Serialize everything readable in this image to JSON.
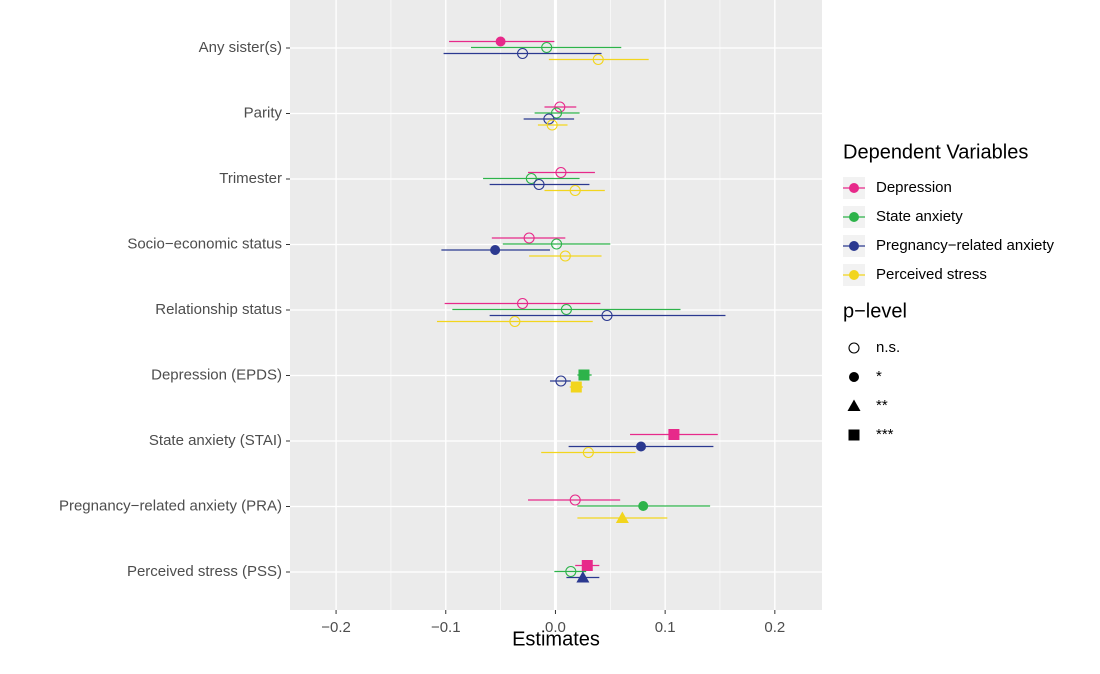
{
  "chart_data": {
    "type": "forest",
    "xlabel": "Estimates",
    "xlim": [
      -0.242,
      0.243
    ],
    "x_ticks": [
      -0.2,
      -0.1,
      0.0,
      0.1,
      0.2
    ],
    "x_tick_labels": [
      "−0.2",
      "−0.1",
      "0.0",
      "0.1",
      "0.2"
    ],
    "grid": true,
    "legend_position": "right",
    "categories": [
      "Any sister(s)",
      "Parity",
      "Trimester",
      "Socio−economic status",
      "Relationship status",
      "Depression (EPDS)",
      "State anxiety (STAI)",
      "Pregnancy−related anxiety (PRA)",
      "Perceived stress (PSS)"
    ],
    "series": [
      {
        "name": "Depression",
        "color": "#e7298a",
        "points": [
          {
            "category": "Any sister(s)",
            "estimate": -0.05,
            "low": -0.097,
            "high": -0.001,
            "p": "*"
          },
          {
            "category": "Parity",
            "estimate": 0.004,
            "low": -0.01,
            "high": 0.019,
            "p": "n.s."
          },
          {
            "category": "Trimester",
            "estimate": 0.005,
            "low": -0.025,
            "high": 0.036,
            "p": "n.s."
          },
          {
            "category": "Socio−economic status",
            "estimate": -0.024,
            "low": -0.058,
            "high": 0.009,
            "p": "n.s."
          },
          {
            "category": "Relationship status",
            "estimate": -0.03,
            "low": -0.101,
            "high": 0.041,
            "p": "n.s."
          },
          {
            "category": "State anxiety (STAI)",
            "estimate": 0.108,
            "low": 0.068,
            "high": 0.148,
            "p": "***"
          },
          {
            "category": "Pregnancy−related anxiety (PRA)",
            "estimate": 0.018,
            "low": -0.025,
            "high": 0.059,
            "p": "n.s."
          },
          {
            "category": "Perceived stress (PSS)",
            "estimate": 0.029,
            "low": 0.018,
            "high": 0.04,
            "p": "***"
          }
        ]
      },
      {
        "name": "State anxiety",
        "color": "#2db34a",
        "points": [
          {
            "category": "Any sister(s)",
            "estimate": -0.008,
            "low": -0.077,
            "high": 0.06,
            "p": "n.s."
          },
          {
            "category": "Parity",
            "estimate": 0.001,
            "low": -0.019,
            "high": 0.022,
            "p": "n.s."
          },
          {
            "category": "Trimester",
            "estimate": -0.022,
            "low": -0.066,
            "high": 0.022,
            "p": "n.s."
          },
          {
            "category": "Socio−economic status",
            "estimate": 0.001,
            "low": -0.048,
            "high": 0.05,
            "p": "n.s."
          },
          {
            "category": "Relationship status",
            "estimate": 0.01,
            "low": -0.094,
            "high": 0.114,
            "p": "n.s."
          },
          {
            "category": "Depression (EPDS)",
            "estimate": 0.026,
            "low": 0.02,
            "high": 0.033,
            "p": "***"
          },
          {
            "category": "Pregnancy−related anxiety (PRA)",
            "estimate": 0.08,
            "low": 0.02,
            "high": 0.141,
            "p": "*"
          },
          {
            "category": "Perceived stress (PSS)",
            "estimate": 0.014,
            "low": -0.001,
            "high": 0.028,
            "p": "n.s."
          }
        ]
      },
      {
        "name": "Pregnancy−related anxiety",
        "color": "#2b3990",
        "points": [
          {
            "category": "Any sister(s)",
            "estimate": -0.03,
            "low": -0.102,
            "high": 0.042,
            "p": "n.s."
          },
          {
            "category": "Parity",
            "estimate": -0.006,
            "low": -0.029,
            "high": 0.017,
            "p": "n.s."
          },
          {
            "category": "Trimester",
            "estimate": -0.015,
            "low": -0.06,
            "high": 0.031,
            "p": "n.s."
          },
          {
            "category": "Socio−economic status",
            "estimate": -0.055,
            "low": -0.104,
            "high": -0.005,
            "p": "*"
          },
          {
            "category": "Relationship status",
            "estimate": 0.047,
            "low": -0.06,
            "high": 0.155,
            "p": "n.s."
          },
          {
            "category": "Depression (EPDS)",
            "estimate": 0.005,
            "low": -0.005,
            "high": 0.014,
            "p": "n.s."
          },
          {
            "category": "State anxiety (STAI)",
            "estimate": 0.078,
            "low": 0.012,
            "high": 0.144,
            "p": "*"
          },
          {
            "category": "Perceived stress (PSS)",
            "estimate": 0.025,
            "low": 0.01,
            "high": 0.04,
            "p": "**"
          }
        ]
      },
      {
        "name": "Perceived stress",
        "color": "#f2d51d",
        "points": [
          {
            "category": "Any sister(s)",
            "estimate": 0.039,
            "low": -0.006,
            "high": 0.085,
            "p": "n.s."
          },
          {
            "category": "Parity",
            "estimate": -0.003,
            "low": -0.016,
            "high": 0.011,
            "p": "n.s."
          },
          {
            "category": "Trimester",
            "estimate": 0.018,
            "low": -0.01,
            "high": 0.045,
            "p": "n.s."
          },
          {
            "category": "Socio−economic status",
            "estimate": 0.009,
            "low": -0.024,
            "high": 0.042,
            "p": "n.s."
          },
          {
            "category": "Relationship status",
            "estimate": -0.037,
            "low": -0.108,
            "high": 0.034,
            "p": "n.s."
          },
          {
            "category": "Depression (EPDS)",
            "estimate": 0.019,
            "low": 0.013,
            "high": 0.025,
            "p": "***"
          },
          {
            "category": "State anxiety (STAI)",
            "estimate": 0.03,
            "low": -0.013,
            "high": 0.073,
            "p": "n.s."
          },
          {
            "category": "Pregnancy−related anxiety (PRA)",
            "estimate": 0.061,
            "low": 0.02,
            "high": 0.102,
            "p": "**"
          }
        ]
      }
    ],
    "legend": {
      "color_title": "Dependent Variables",
      "color_entries": [
        "Depression",
        "State anxiety",
        "Pregnancy−related anxiety",
        "Perceived stress"
      ],
      "shape_title": "p−level",
      "shape_entries": [
        {
          "label": "n.s.",
          "shape": "open-circle"
        },
        {
          "label": "*",
          "shape": "filled-circle"
        },
        {
          "label": "**",
          "shape": "triangle"
        },
        {
          "label": "***",
          "shape": "square"
        }
      ]
    }
  }
}
